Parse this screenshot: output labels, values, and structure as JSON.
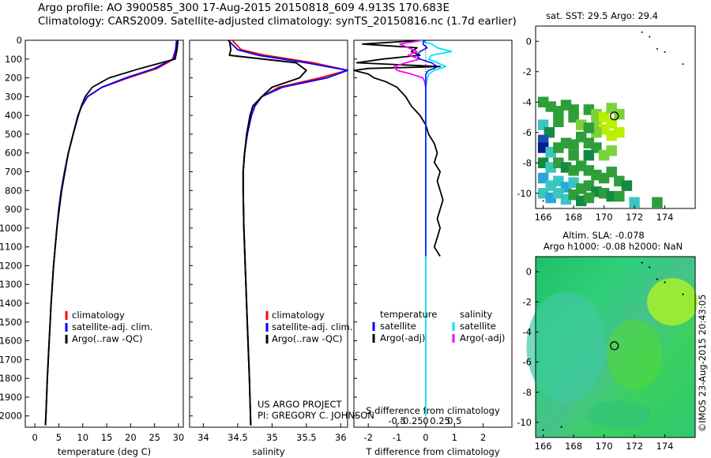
{
  "header": {
    "line1": "Argo profile: AO 3900585_300 17-Aug-2015 20150818_609 4.913S 170.683E",
    "line2": "Climatology: CARS2009. Satellite-adjusted climatology: synTS_20150816.nc (1.7d earlier)"
  },
  "colors": {
    "climatology": "#ff0000",
    "satellite": "#0000ff",
    "argo": "#000000",
    "sal_satellite": "#00e5ee",
    "sal_argo": "#ff00ff"
  },
  "chart_data": [
    {
      "type": "line",
      "id": "temperature",
      "xlabel": "temperature (deg C)",
      "ylabel": "",
      "xlim": [
        -2,
        31
      ],
      "ylim": [
        2060,
        0
      ],
      "xticks": [
        "0",
        "5",
        "10",
        "15",
        "20",
        "25",
        "30"
      ],
      "yticks": [
        "0",
        "100",
        "200",
        "300",
        "400",
        "500",
        "600",
        "700",
        "800",
        "900",
        "1000",
        "1100",
        "1200",
        "1300",
        "1400",
        "1500",
        "1600",
        "1700",
        "1800",
        "1900",
        "2000"
      ],
      "legend": [
        "climatology",
        "satellite-adj. clim.",
        "Argo(..raw -QC)"
      ],
      "depth": [
        0,
        50,
        100,
        150,
        200,
        250,
        300,
        350,
        400,
        500,
        600,
        700,
        800,
        900,
        1000,
        1200,
        1400,
        1600,
        1800,
        2000,
        2050
      ],
      "series": [
        {
          "name": "climatology",
          "values": [
            29.8,
            29.6,
            29.0,
            25.5,
            19.5,
            14.0,
            11.0,
            9.8,
            9.0,
            8.0,
            7.0,
            6.2,
            5.5,
            5.0,
            4.6,
            3.9,
            3.4,
            3.0,
            2.6,
            2.3,
            2.2
          ]
        },
        {
          "name": "satellite-adj. clim.",
          "values": [
            29.6,
            29.4,
            28.8,
            25.0,
            19.0,
            14.0,
            11.0,
            9.8,
            9.0,
            8.0,
            7.0,
            6.2,
            5.5,
            5.0,
            4.6,
            3.9,
            3.4,
            3.0,
            2.6,
            2.3,
            2.2
          ]
        },
        {
          "name": "Argo(..raw -QC)",
          "values": [
            29.9,
            29.7,
            29.3,
            22.0,
            15.5,
            12.0,
            10.5,
            9.7,
            9.1,
            8.0,
            7.0,
            6.3,
            5.6,
            5.1,
            4.6,
            3.9,
            3.4,
            3.0,
            2.6,
            2.3,
            2.2
          ]
        }
      ]
    },
    {
      "type": "line",
      "id": "salinity",
      "xlabel": "salinity",
      "ylabel": "",
      "xlim": [
        33.8,
        36.1
      ],
      "ylim": [
        2060,
        0
      ],
      "xticks": [
        "34",
        "34.5",
        "35",
        "35.5",
        "36"
      ],
      "legend": [
        "climatology",
        "satellite-adj. clim.",
        "Argo(..raw -QC)"
      ],
      "depth": [
        0,
        50,
        80,
        120,
        160,
        200,
        250,
        300,
        350,
        400,
        500,
        600,
        700,
        800,
        1000,
        1200,
        1500,
        1800,
        2050
      ],
      "series": [
        {
          "name": "climatology",
          "values": [
            34.42,
            34.55,
            34.9,
            35.6,
            36.1,
            35.7,
            35.1,
            34.85,
            34.75,
            34.7,
            34.64,
            34.6,
            34.58,
            34.58,
            34.59,
            34.61,
            34.64,
            34.67,
            34.69
          ]
        },
        {
          "name": "satellite-adj. clim.",
          "values": [
            34.36,
            34.5,
            34.8,
            35.5,
            36.1,
            35.8,
            35.15,
            34.85,
            34.75,
            34.7,
            34.64,
            34.6,
            34.58,
            34.58,
            34.59,
            34.61,
            34.64,
            34.67,
            34.69
          ]
        },
        {
          "name": "Argo(..raw -QC)",
          "values": [
            34.38,
            34.4,
            34.38,
            35.35,
            35.5,
            35.4,
            35.0,
            34.85,
            34.72,
            34.68,
            34.63,
            34.6,
            34.58,
            34.58,
            34.59,
            34.61,
            34.64,
            34.67,
            34.69
          ]
        }
      ]
    },
    {
      "type": "line",
      "id": "difference",
      "xlabel": "T difference from climatology",
      "xlabel_top": "S difference from climatology",
      "xlim_T": [
        -2.5,
        3
      ],
      "xticks_T": [
        "-2",
        "-1",
        "0",
        "1",
        "2"
      ],
      "xticks_S": [
        "-0.5",
        "-0.25",
        "0",
        "0.25",
        "0.5"
      ],
      "ylim": [
        2060,
        0
      ],
      "legend_headers": [
        "temperature",
        "salinity"
      ],
      "legend": [
        "satellite",
        "Argo(-adj)",
        "satellite",
        "Argo(-adj)"
      ],
      "depth_T_argo": [
        0,
        20,
        40,
        60,
        80,
        100,
        120,
        140,
        150,
        160,
        180,
        200,
        220,
        250,
        300,
        350,
        400,
        450,
        500,
        550,
        600,
        650,
        700,
        750,
        800,
        850,
        900,
        950,
        1000,
        1050,
        1100,
        1150
      ],
      "series": [
        {
          "name": "T satellite",
          "values": [
            -0.05,
            -0.1,
            0.05,
            -0.2,
            -0.3,
            -0.2,
            0.2,
            0.4,
            0.3,
            0.1,
            0.0,
            0.0,
            0.0,
            0.0,
            0.0,
            0.0,
            0.0,
            0.0,
            0.0,
            0.0,
            0.0,
            0.0,
            0.0,
            0.0,
            0.0,
            0.0,
            0.0,
            0.0,
            0.0,
            0.0,
            0.0,
            0.0
          ]
        },
        {
          "name": "T Argo(-adj)",
          "values": [
            -0.1,
            -2.2,
            -0.3,
            -0.5,
            -0.2,
            -1.5,
            -2.4,
            0.5,
            -2.0,
            -2.5,
            -2.0,
            -1.8,
            -1.4,
            -1.0,
            -0.7,
            -0.5,
            -0.2,
            0.0,
            0.1,
            0.3,
            0.4,
            0.3,
            0.5,
            0.4,
            0.5,
            0.6,
            0.5,
            0.4,
            0.5,
            0.4,
            0.3,
            0.5
          ]
        },
        {
          "name": "S satellite",
          "depth": [
            0,
            20,
            40,
            60,
            80,
            100,
            120,
            140,
            160,
            180,
            200,
            250,
            300,
            400,
            500,
            700,
            1000,
            1500,
            2000
          ],
          "values": [
            -0.1,
            0.1,
            0.2,
            0.45,
            0.1,
            0.05,
            0.2,
            0.35,
            0.15,
            0.05,
            0.03,
            0.0,
            0.0,
            0.0,
            0.0,
            0.0,
            0.0,
            0.0,
            0.0
          ]
        },
        {
          "name": "S Argo(-adj)",
          "depth": [
            0,
            20,
            40,
            60,
            80,
            100,
            120,
            140,
            160,
            180,
            200,
            220,
            250
          ],
          "values": [
            -0.05,
            -0.45,
            -0.3,
            -0.15,
            -0.3,
            -0.1,
            -0.35,
            -0.55,
            -0.5,
            -0.25,
            -0.05,
            -0.02,
            0.0
          ]
        }
      ]
    },
    {
      "type": "heatmap",
      "id": "sst-map",
      "title": "sat. SST: 29.5 Argo: 29.4",
      "xlim": [
        165.5,
        176
      ],
      "ylim": [
        -11,
        1
      ],
      "xticks": [
        "166",
        "168",
        "170",
        "172",
        "174"
      ],
      "yticks": [
        "0",
        "-2",
        "-4",
        "-6",
        "-8",
        "-10"
      ],
      "marker": [
        170.683,
        -4.913
      ]
    },
    {
      "type": "heatmap",
      "id": "sla-map",
      "title_line1": "Altim. SLA: -0.078",
      "title_line2": "Argo h1000: -0.08 h2000: NaN",
      "xlim": [
        165.5,
        176
      ],
      "ylim": [
        -11,
        1
      ],
      "xticks": [
        "166",
        "168",
        "170",
        "172",
        "174"
      ],
      "yticks": [
        "0",
        "-2",
        "-4",
        "-6",
        "-8",
        "-10"
      ],
      "marker": [
        170.683,
        -4.913
      ]
    }
  ],
  "credits": {
    "project": "US ARGO PROJECT",
    "pi": "PI: GREGORY C. JOHNSON",
    "stamp": "©IMOS 23-Aug-2015 20:43:05"
  }
}
